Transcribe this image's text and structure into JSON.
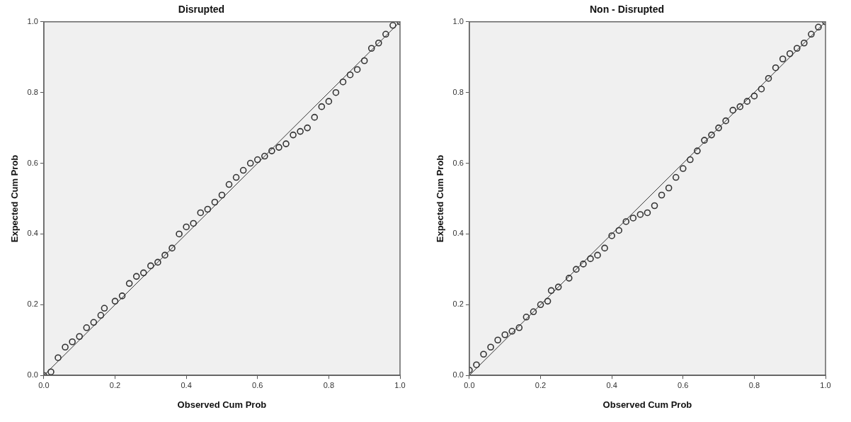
{
  "chart_data": [
    {
      "type": "scatter",
      "title": "Disrupted",
      "xlabel": "Observed Cum Prob",
      "ylabel": "Expected Cum Prob",
      "legend": false,
      "grid": false,
      "marker": "circle",
      "xlim": [
        0,
        1
      ],
      "ylim": [
        0,
        1
      ],
      "xticks": [
        {
          "value": 0,
          "label": "0.0"
        },
        {
          "value": 0.2,
          "label": "0.2"
        },
        {
          "value": 0.4,
          "label": "0.4"
        },
        {
          "value": 0.6,
          "label": "0.6"
        },
        {
          "value": 0.8,
          "label": "0.8"
        },
        {
          "value": 1,
          "label": "1.0"
        }
      ],
      "yticks": [
        {
          "value": 0,
          "label": "0.0"
        },
        {
          "value": 0.2,
          "label": "0.2"
        },
        {
          "value": 0.4,
          "label": "0.4"
        },
        {
          "value": 0.6,
          "label": "0.6"
        },
        {
          "value": 0.8,
          "label": "0.8"
        },
        {
          "value": 1,
          "label": "1.0"
        }
      ],
      "series": [
        {
          "type": "scatter",
          "color": "#333333",
          "x": [
            0,
            0.02,
            0.04,
            0.06,
            0.08,
            0.1,
            0.12,
            0.14,
            0.16,
            0.17,
            0.2,
            0.22,
            0.24,
            0.26,
            0.28,
            0.3,
            0.32,
            0.34,
            0.36,
            0.38,
            0.4,
            0.42,
            0.44,
            0.46,
            0.48,
            0.5,
            0.52,
            0.54,
            0.56,
            0.58,
            0.6,
            0.62,
            0.64,
            0.66,
            0.68,
            0.7,
            0.72,
            0.74,
            0.76,
            0.78,
            0.8,
            0.82,
            0.84,
            0.86,
            0.88,
            0.9,
            0.92,
            0.94,
            0.96,
            0.98,
            1.0
          ],
          "values": [
            0,
            0.01,
            0.05,
            0.08,
            0.095,
            0.11,
            0.135,
            0.15,
            0.17,
            0.19,
            0.21,
            0.225,
            0.26,
            0.28,
            0.29,
            0.31,
            0.32,
            0.34,
            0.36,
            0.4,
            0.42,
            0.43,
            0.46,
            0.47,
            0.49,
            0.51,
            0.54,
            0.56,
            0.58,
            0.6,
            0.61,
            0.62,
            0.635,
            0.645,
            0.655,
            0.68,
            0.69,
            0.7,
            0.73,
            0.76,
            0.775,
            0.8,
            0.83,
            0.85,
            0.865,
            0.89,
            0.925,
            0.94,
            0.965,
            0.99,
            1.0
          ]
        },
        {
          "type": "line",
          "color": "#333333",
          "marker": "none",
          "x": [
            0,
            1
          ],
          "values": [
            0,
            1
          ]
        }
      ]
    },
    {
      "type": "scatter",
      "title": "Non - Disrupted",
      "xlabel": "Observed Cum Prob",
      "ylabel": "Expected Cum Prob",
      "legend": false,
      "grid": false,
      "marker": "circle",
      "xlim": [
        0,
        1
      ],
      "ylim": [
        0,
        1
      ],
      "xticks": [
        {
          "value": 0,
          "label": "0.0"
        },
        {
          "value": 0.2,
          "label": "0.2"
        },
        {
          "value": 0.4,
          "label": "0.4"
        },
        {
          "value": 0.6,
          "label": "0.6"
        },
        {
          "value": 0.8,
          "label": "0.8"
        },
        {
          "value": 1,
          "label": "1.0"
        }
      ],
      "yticks": [
        {
          "value": 0,
          "label": "0.0"
        },
        {
          "value": 0.2,
          "label": "0.2"
        },
        {
          "value": 0.4,
          "label": "0.4"
        },
        {
          "value": 0.6,
          "label": "0.6"
        },
        {
          "value": 0.8,
          "label": "0.8"
        },
        {
          "value": 1,
          "label": "1.0"
        }
      ],
      "series": [
        {
          "type": "scatter",
          "color": "#333333",
          "x": [
            0,
            0.02,
            0.04,
            0.06,
            0.08,
            0.1,
            0.12,
            0.14,
            0.16,
            0.18,
            0.2,
            0.22,
            0.23,
            0.25,
            0.28,
            0.3,
            0.32,
            0.34,
            0.36,
            0.38,
            0.4,
            0.42,
            0.44,
            0.46,
            0.48,
            0.5,
            0.52,
            0.54,
            0.56,
            0.58,
            0.6,
            0.62,
            0.64,
            0.66,
            0.68,
            0.7,
            0.72,
            0.74,
            0.76,
            0.78,
            0.8,
            0.82,
            0.84,
            0.86,
            0.88,
            0.9,
            0.92,
            0.94,
            0.96,
            0.98,
            1.0
          ],
          "values": [
            0.015,
            0.03,
            0.06,
            0.08,
            0.1,
            0.115,
            0.125,
            0.135,
            0.165,
            0.18,
            0.2,
            0.21,
            0.24,
            0.25,
            0.275,
            0.3,
            0.315,
            0.33,
            0.34,
            0.36,
            0.395,
            0.41,
            0.435,
            0.445,
            0.455,
            0.46,
            0.48,
            0.51,
            0.53,
            0.56,
            0.585,
            0.61,
            0.635,
            0.665,
            0.68,
            0.7,
            0.72,
            0.75,
            0.76,
            0.775,
            0.79,
            0.81,
            0.84,
            0.87,
            0.895,
            0.91,
            0.925,
            0.94,
            0.965,
            0.985,
            1.0
          ]
        },
        {
          "type": "line",
          "color": "#333333",
          "marker": "none",
          "x": [
            0,
            1
          ],
          "values": [
            0,
            1
          ]
        }
      ]
    }
  ]
}
